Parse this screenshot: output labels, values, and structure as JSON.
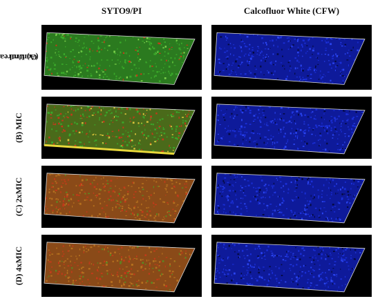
{
  "columns": [
    {
      "header": "SYTO9/PI",
      "stain": "live-dead"
    },
    {
      "header": "Calcofluor White (CFW)",
      "stain": "cfw"
    }
  ],
  "rows": [
    {
      "label_line1": "(A) Untreated",
      "label_line2": "Control",
      "syto_tone": "green"
    },
    {
      "label_line1": "(B) MIC",
      "label_line2": "",
      "syto_tone": "green-red"
    },
    {
      "label_line1": "(C) 2xMIC",
      "label_line2": "",
      "syto_tone": "orange-red"
    },
    {
      "label_line1": "(D) 4xMIC",
      "label_line2": "",
      "syto_tone": "orange-red"
    }
  ],
  "colors": {
    "background": "#000000",
    "green": "#3aa82a",
    "red": "#c23a1a",
    "orange": "#b5701e",
    "blue": "#1a2fd6",
    "box_line": "#d9d9d9"
  }
}
